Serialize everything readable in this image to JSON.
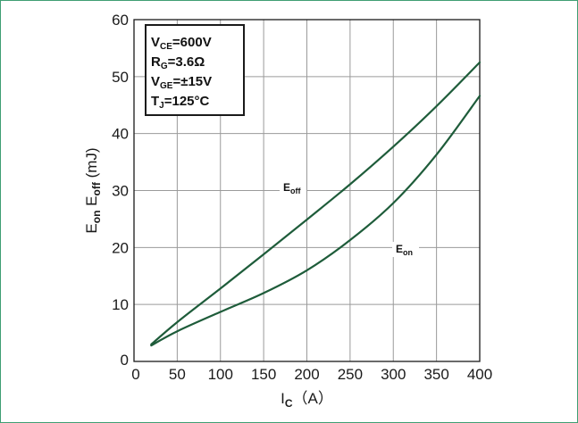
{
  "chart_data": {
    "type": "line",
    "xlabel": {
      "main": "I",
      "sub": "C",
      "unit": "（A）"
    },
    "ylabel": {
      "e1": "E",
      "s1": "on",
      "e2": " E",
      "s2": "off",
      "unit": " (mJ)"
    },
    "xlim": [
      0,
      400
    ],
    "ylim": [
      0,
      60
    ],
    "x_ticks": [
      "0",
      "50",
      "100",
      "150",
      "200",
      "250",
      "300",
      "350",
      "400"
    ],
    "y_ticks": [
      "0",
      "10",
      "20",
      "30",
      "40",
      "50",
      "60"
    ],
    "grid": true,
    "conditions": [
      {
        "main": "V",
        "sub": "CE",
        "rest": "=600V"
      },
      {
        "main": "R",
        "sub": "G",
        "rest": "=3.6Ω"
      },
      {
        "main": "V",
        "sub": "GE",
        "rest": "=±15V"
      },
      {
        "main": "T",
        "sub": "J",
        "rest": "=125°C"
      }
    ],
    "series": [
      {
        "name": "E_off",
        "label_main": "E",
        "label_sub": "off",
        "color": "#1e5c3a",
        "x": [
          20,
          50,
          100,
          150,
          200,
          250,
          300,
          350,
          400
        ],
        "y": [
          3.0,
          6.9,
          12.8,
          18.8,
          24.9,
          31.1,
          37.7,
          44.8,
          52.5
        ]
      },
      {
        "name": "E_on",
        "label_main": "E",
        "label_sub": "on",
        "color": "#1e5c3a",
        "x": [
          20,
          50,
          100,
          150,
          200,
          250,
          300,
          350,
          400
        ],
        "y": [
          2.8,
          5.3,
          8.7,
          12.0,
          16.0,
          21.3,
          27.8,
          36.3,
          46.6
        ]
      }
    ]
  }
}
